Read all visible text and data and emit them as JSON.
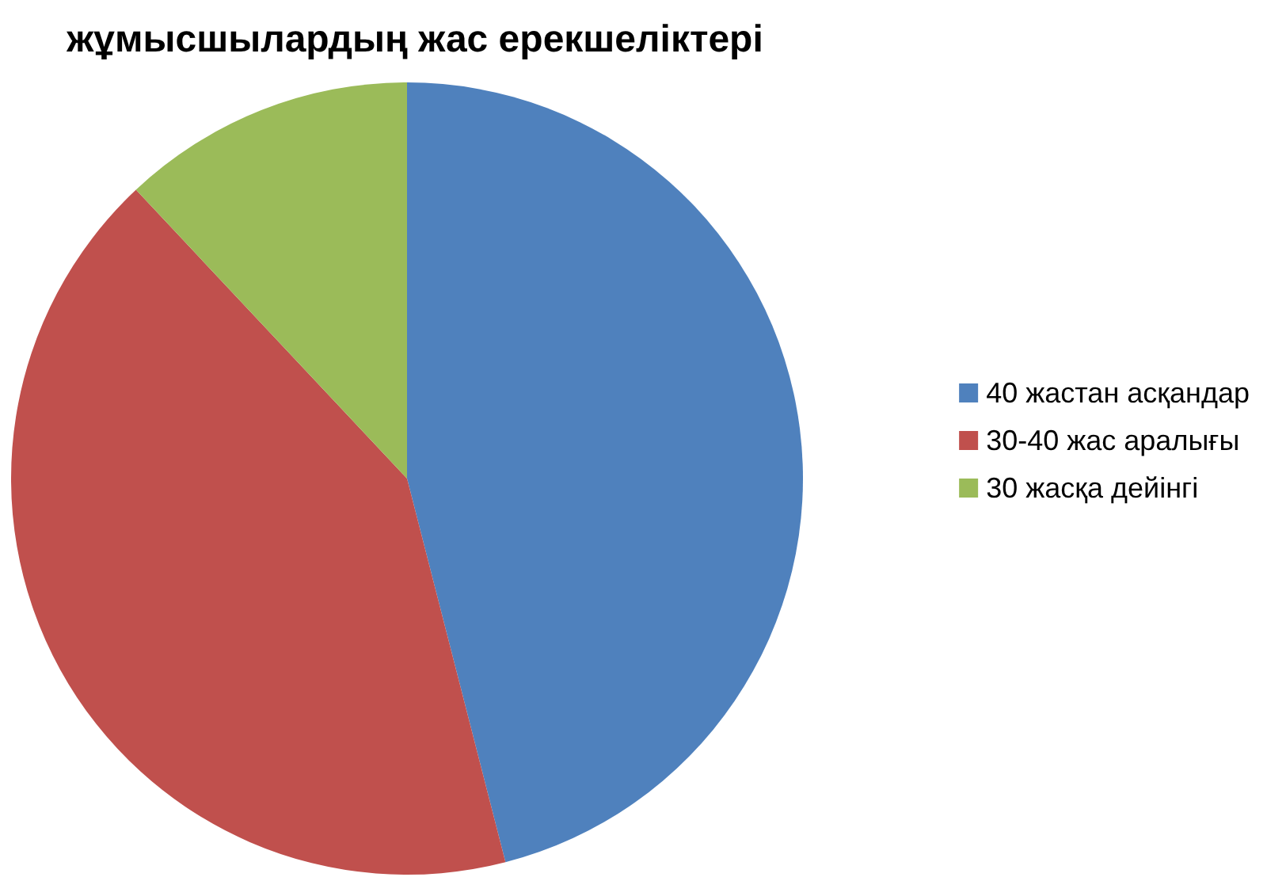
{
  "chart_data": {
    "type": "pie",
    "title": "жұмысшылардың жас ерекшеліктері",
    "categories": [
      "40 жастан асқандар",
      "30-40 жас аралығы",
      "30 жасқа дейінгі"
    ],
    "values": [
      46,
      42,
      12
    ],
    "colors": [
      "#4f81bd",
      "#c0504d",
      "#9bbb59"
    ],
    "legend": "right"
  }
}
